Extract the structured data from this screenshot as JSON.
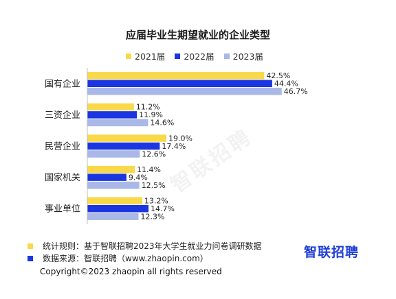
{
  "chart_data": {
    "type": "bar",
    "orientation": "horizontal",
    "title": "应届毕业生期望就业的企业类型",
    "categories": [
      "国有企业",
      "三资企业",
      "民营企业",
      "国家机关",
      "事业单位"
    ],
    "series": [
      {
        "name": "2021届",
        "color": "#f9d94a",
        "values": [
          42.5,
          11.2,
          19.0,
          11.4,
          13.2
        ],
        "labels": [
          "42.5%",
          "11.2%",
          "19.0%",
          "11.4%",
          "13.2%"
        ]
      },
      {
        "name": "2022届",
        "color": "#1b36e0",
        "values": [
          44.4,
          11.9,
          17.4,
          9.4,
          14.7
        ],
        "labels": [
          "44.4%",
          "11.9%",
          "17.4%",
          "9.4%",
          "14.7%"
        ]
      },
      {
        "name": "2023届",
        "color": "#a9b8e6",
        "values": [
          46.7,
          14.6,
          12.6,
          12.5,
          12.3
        ],
        "labels": [
          "46.7%",
          "14.6%",
          "12.6%",
          "12.5%",
          "12.3%"
        ]
      }
    ],
    "xlim": [
      0,
      50
    ],
    "legend_position": "top",
    "grid": false
  },
  "watermark": "智联招聘",
  "footnotes": [
    {
      "text": "统计规则：基于智联招聘2023年大学生就业力问卷调研数据",
      "color": "#f9d94a"
    },
    {
      "text": "数据来源：智联招聘（www.zhaopin.com）",
      "color": "#1b36e0"
    }
  ],
  "brand": "智联招聘",
  "copyright": "Copyright©2023 zhaopin all rights reserved"
}
